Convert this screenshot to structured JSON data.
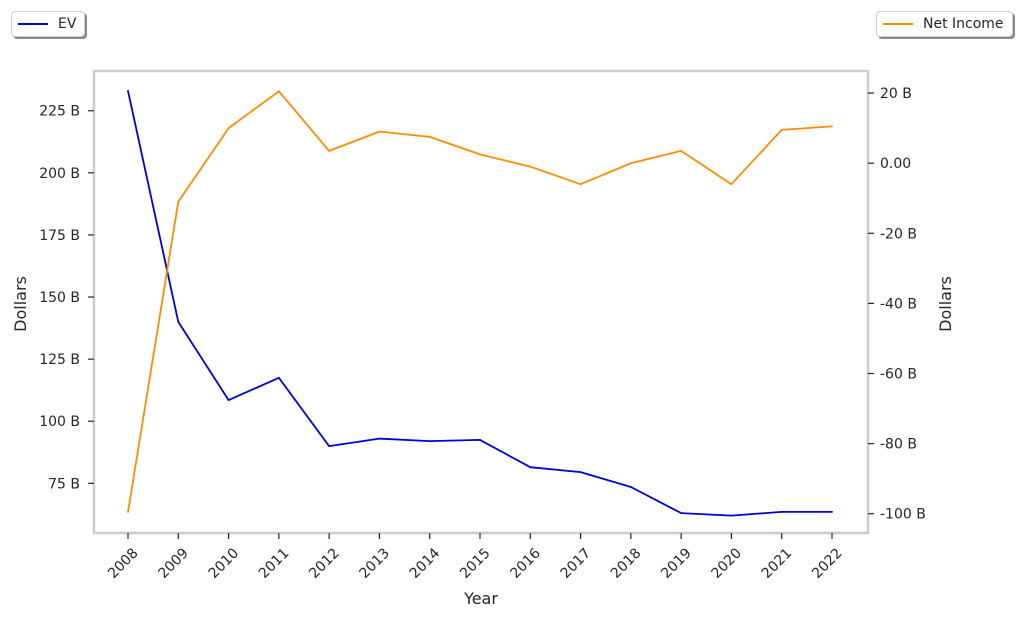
{
  "chart_data": {
    "type": "line",
    "xlabel": "Year",
    "ylabel_left": "Dollars",
    "ylabel_right": "Dollars",
    "categories": [
      "2008",
      "2009",
      "2010",
      "2011",
      "2012",
      "2013",
      "2014",
      "2015",
      "2016",
      "2017",
      "2018",
      "2019",
      "2020",
      "2021",
      "2022"
    ],
    "series": [
      {
        "name": "EV",
        "axis": "left",
        "color": "#0000dd",
        "unit": "B",
        "values": [
          233,
          140,
          108.5,
          117.5,
          90,
          93,
          92,
          92.5,
          81.5,
          79.5,
          73.5,
          63,
          62,
          63.5,
          63.5
        ]
      },
      {
        "name": "Net Income",
        "axis": "right",
        "color": "#ff8c00",
        "unit": "B",
        "values": [
          -99.5,
          -11,
          10,
          20.5,
          3.5,
          9,
          7.5,
          2.5,
          -1,
          -6,
          0,
          3.5,
          -6,
          9.5,
          10.5
        ]
      }
    ],
    "left_axis": {
      "ylim": [
        55,
        241
      ],
      "ticks": [
        75,
        100,
        125,
        150,
        175,
        200,
        225
      ],
      "tick_labels": [
        "75 B",
        "100 B",
        "125 B",
        "150 B",
        "175 B",
        "200 B",
        "225 B"
      ]
    },
    "right_axis": {
      "ylim": [
        -105.5,
        26.3
      ],
      "ticks": [
        -100,
        -80,
        -60,
        -40,
        -20,
        0,
        20
      ],
      "tick_labels": [
        "-100 B",
        "-80 B",
        "-60 B",
        "-40 B",
        "-20 B",
        "0.00",
        "20 B"
      ]
    },
    "legend_placement": [
      "top-left",
      "top-right"
    ],
    "grid": false
  }
}
